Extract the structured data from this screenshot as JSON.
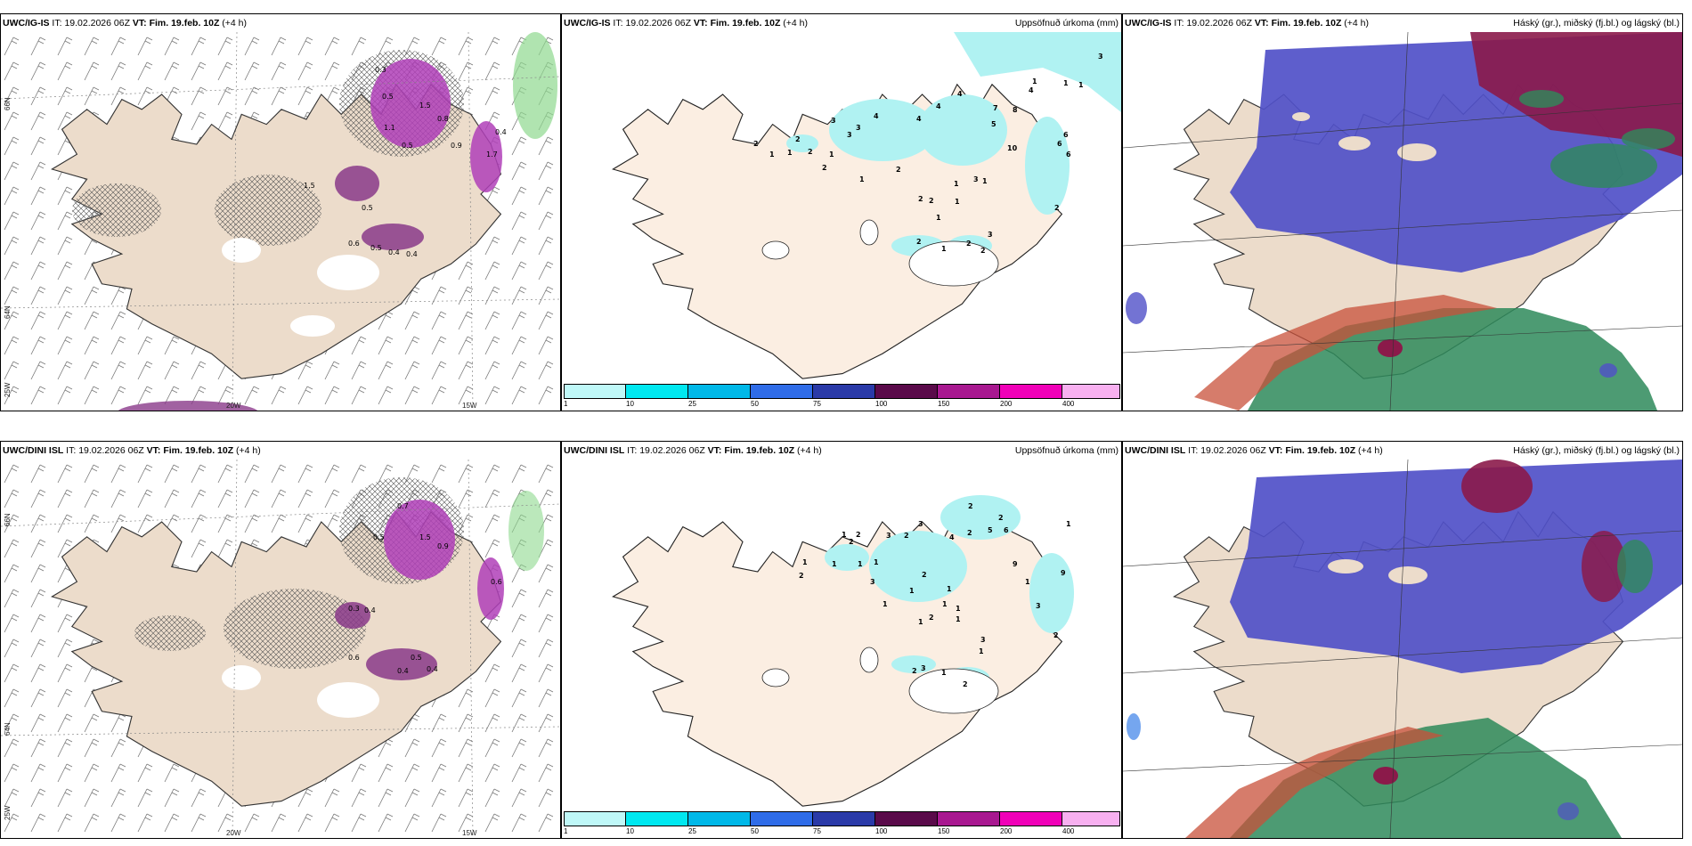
{
  "panels": [
    {
      "id": "p1",
      "model": "UWC/IG-IS",
      "it_label": "IT:",
      "it": "19.02.2026 06Z",
      "vt_label": "VT:",
      "vt": "Fim. 19.feb. 10Z",
      "lead": "(+4 h)",
      "right": ""
    },
    {
      "id": "p2",
      "model": "UWC/IG-IS",
      "it_label": "IT:",
      "it": "19.02.2026 06Z",
      "vt_label": "VT:",
      "vt": "Fim. 19.feb. 10Z",
      "lead": "(+4 h)",
      "right": "Uppsöfnuð úrkoma (mm)"
    },
    {
      "id": "p3",
      "model": "UWC/IG-IS",
      "it_label": "IT:",
      "it": "19.02.2026 06Z",
      "vt_label": "VT:",
      "vt": "Fim. 19.feb. 10Z",
      "lead": "(+4 h)",
      "right": "Háský (gr.), miðský (fj.bl.) og lágský (bl.)"
    },
    {
      "id": "p4",
      "model": "UWC/DINI ISL",
      "it_label": "IT:",
      "it": "19.02.2026 06Z",
      "vt_label": "VT:",
      "vt": "Fim. 19.feb. 10Z",
      "lead": "(+4 h)",
      "right": ""
    },
    {
      "id": "p5",
      "model": "UWC/DINI ISL",
      "it_label": "IT:",
      "it": "19.02.2026 06Z",
      "vt_label": "VT:",
      "vt": "Fim. 19.feb. 10Z",
      "lead": "(+4 h)",
      "right": "Uppsöfnuð úrkoma (mm)"
    },
    {
      "id": "p6",
      "model": "UWC/DINI ISL",
      "it_label": "IT:",
      "it": "19.02.2026 06Z",
      "vt_label": "VT:",
      "vt": "Fim. 19.feb. 10Z",
      "lead": "(+4 h)",
      "right": "Háský (gr.), miðský (fj.bl.) og lágský (bl.)"
    }
  ],
  "grid_labels": {
    "lat66": "66N",
    "lat64": "64N",
    "lon25": "25W",
    "lon20": "20W",
    "lon15": "15W"
  },
  "precip_colorbar": {
    "ticks": [
      "1",
      "10",
      "25",
      "50",
      "75",
      "100",
      "150",
      "200",
      "400"
    ],
    "colors": [
      "#bff8f8",
      "#00e8f0",
      "#00b8e8",
      "#2f6ce8",
      "#2a3aa8",
      "#5a0a4a",
      "#a81890",
      "#f000b8",
      "#f8b0f0"
    ]
  },
  "colors": {
    "land": "#ecdccb",
    "land_light": "#fbeee2",
    "precip_light": "#b0f2f2",
    "cloud_high": "#2e8a5a",
    "cloud_mid": "#8b1a4a",
    "cloud_low": "#5050c8",
    "snow": "#b040b8"
  },
  "precip_labels_ig": [
    "3",
    "4",
    "5",
    "4",
    "7",
    "6",
    "8",
    "1",
    "1",
    "1",
    "2",
    "3",
    "3",
    "4",
    "4",
    "1",
    "3",
    "2",
    "4",
    "10",
    "6",
    "6",
    "1",
    "2",
    "2",
    "1",
    "2",
    "1",
    "3",
    "1",
    "2",
    "1",
    "1",
    "2",
    "2",
    "1",
    "2",
    "2",
    "1",
    "2",
    "3"
  ],
  "precip_labels_dini": [
    "2",
    "2",
    "5",
    "6",
    "3",
    "1",
    "2",
    "4",
    "1",
    "2",
    "2",
    "3",
    "1",
    "1",
    "2",
    "1",
    "3",
    "2",
    "1",
    "9",
    "9",
    "1",
    "1",
    "1",
    "3",
    "1",
    "2",
    "1",
    "1",
    "1",
    "2",
    "1",
    "2",
    "3",
    "3",
    "2",
    "1",
    "1",
    "2"
  ],
  "snow_labels_ig": [
    "0.5",
    "1.5",
    "0.8",
    "0.4",
    "0.9",
    "0.3",
    "1.7",
    "1.1",
    "0.5",
    "0.5",
    "0.6",
    "0.5",
    "0.4",
    "0.4",
    "1.5"
  ],
  "snow_labels_dini": [
    "0.7",
    "1.5",
    "0.5",
    "0.9",
    "0.3",
    "0.4",
    "0.6",
    "0.5",
    "0.4",
    "0.6",
    "0.4"
  ]
}
